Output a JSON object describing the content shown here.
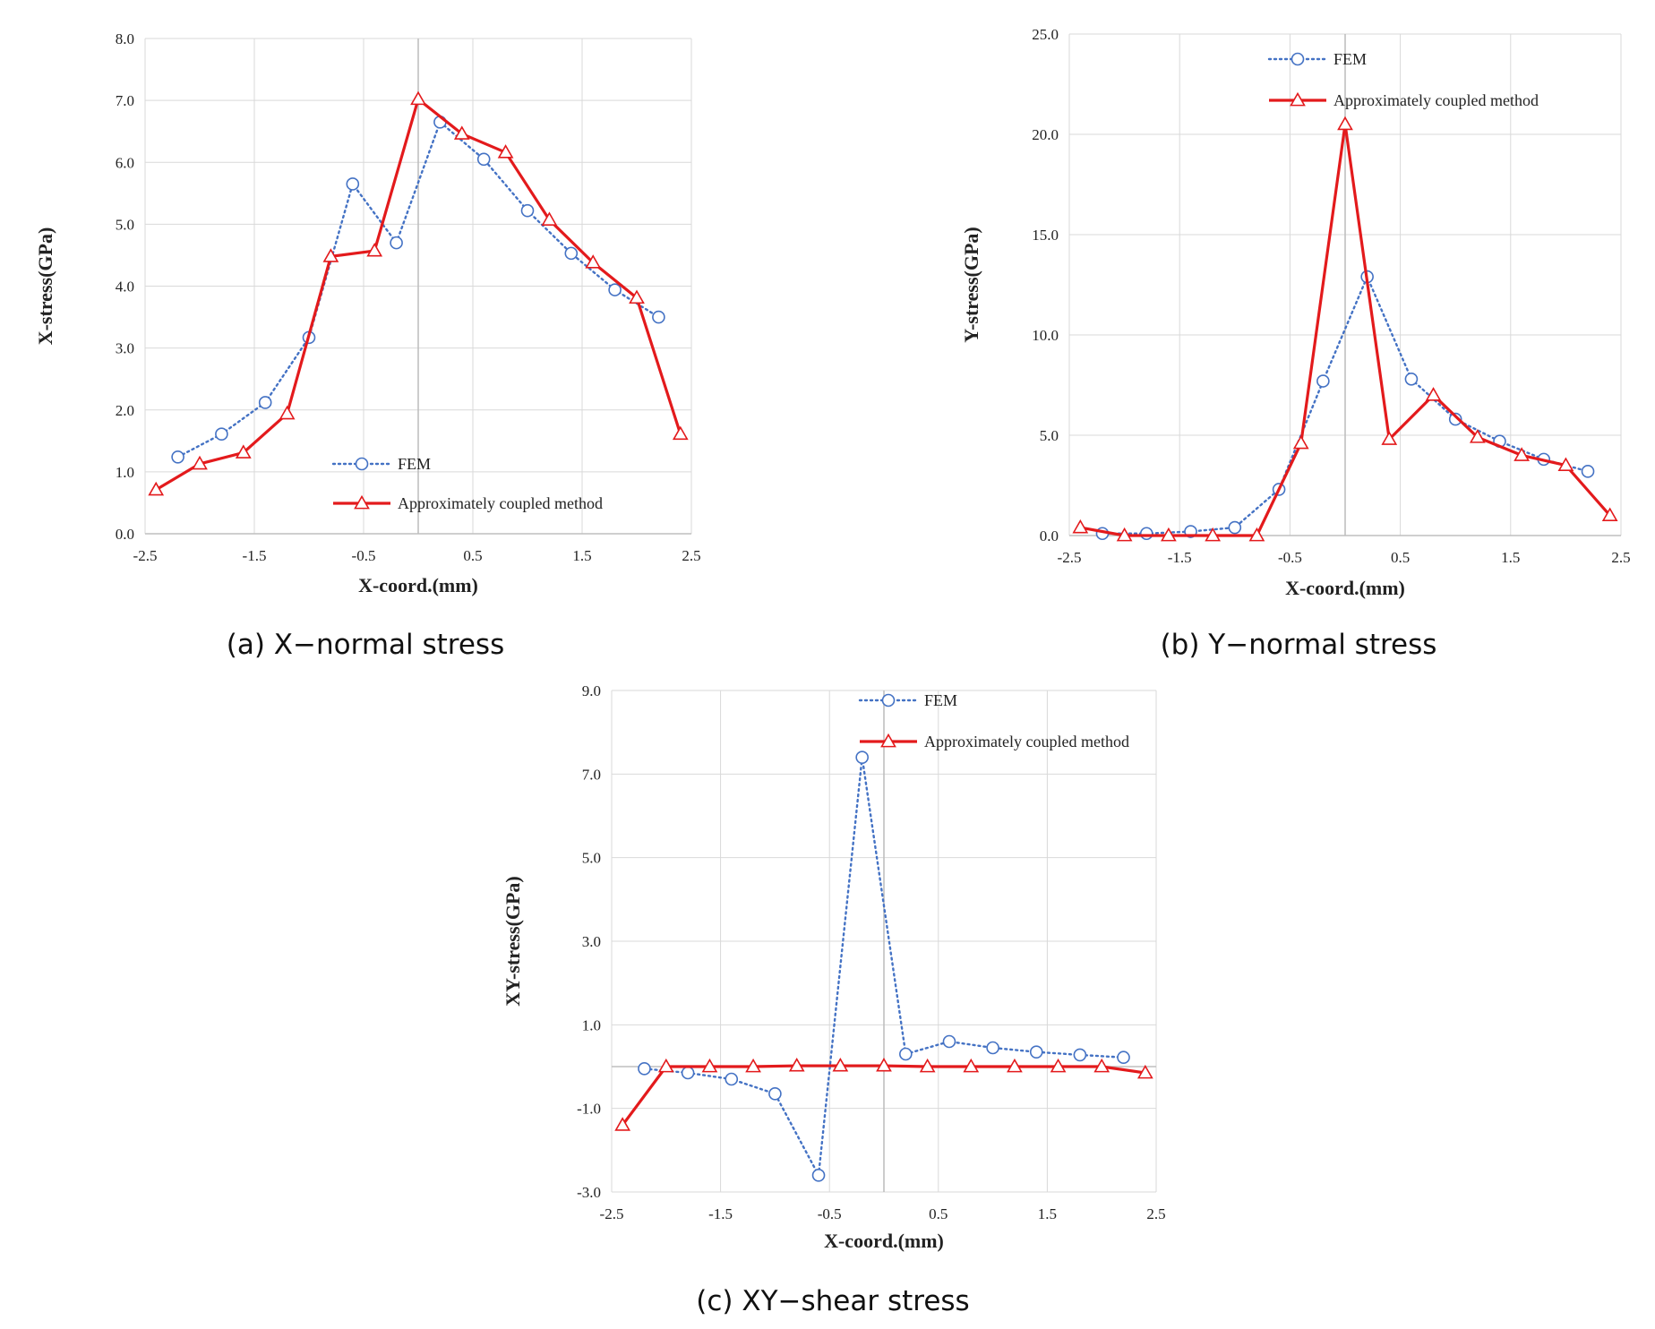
{
  "colors": {
    "fem": "#4472c4",
    "coupled": "#e31a1c",
    "grid": "#d9d9d9",
    "axis": "#bfbfbf",
    "text": "#222222"
  },
  "chart_data": [
    {
      "type": "line",
      "caption": "(a) X−normal stress",
      "title": "",
      "xlabel": "X-coord.(mm)",
      "ylabel": "X-stress(GPa)",
      "xlim": [
        -2.5,
        2.5
      ],
      "ylim": [
        0,
        8
      ],
      "xticks": [
        -2.5,
        -1.5,
        -0.5,
        0.5,
        1.5,
        2.5
      ],
      "xtick_labels": [
        "-2.5",
        "-1.5",
        "-0.5",
        "0.5",
        "1.5",
        "2.5"
      ],
      "yticks": [
        0,
        1,
        2,
        3,
        4,
        5,
        6,
        7,
        8
      ],
      "ytick_labels": [
        "0.0",
        "1.0",
        "2.0",
        "3.0",
        "4.0",
        "5.0",
        "6.0",
        "7.0",
        "8.0"
      ],
      "legend_position": "bottom-center",
      "series": [
        {
          "name": "FEM",
          "style": "dotted-circle",
          "x": [
            -2.2,
            -1.8,
            -1.4,
            -1.0,
            -0.6,
            -0.2,
            0.2,
            0.6,
            1.0,
            1.4,
            1.8,
            2.2
          ],
          "y": [
            1.24,
            1.61,
            2.12,
            3.17,
            5.65,
            4.7,
            6.65,
            6.05,
            5.22,
            4.53,
            3.94,
            3.5
          ]
        },
        {
          "name": "Approximately coupled method",
          "style": "solid-triangle",
          "x": [
            -2.4,
            -2.0,
            -1.6,
            -1.2,
            -0.8,
            -0.4,
            0.0,
            0.4,
            0.8,
            1.2,
            1.6,
            2.0,
            2.4
          ],
          "y": [
            0.71,
            1.13,
            1.31,
            1.94,
            4.48,
            4.57,
            7.02,
            6.46,
            6.16,
            5.07,
            4.38,
            3.81,
            1.61
          ]
        }
      ]
    },
    {
      "type": "line",
      "caption": "(b) Y−normal stress",
      "title": "",
      "xlabel": "X-coord.(mm)",
      "ylabel": "Y-stress(GPa)",
      "xlim": [
        -2.5,
        2.5
      ],
      "ylim": [
        0,
        25
      ],
      "xticks": [
        -2.5,
        -1.5,
        -0.5,
        0.5,
        1.5,
        2.5
      ],
      "xtick_labels": [
        "-2.5",
        "-1.5",
        "-0.5",
        "0.5",
        "1.5",
        "2.5"
      ],
      "yticks": [
        0,
        5,
        10,
        15,
        20,
        25
      ],
      "ytick_labels": [
        "0.0",
        "5.0",
        "10.0",
        "15.0",
        "20.0",
        "25.0"
      ],
      "legend_position": "top-center",
      "series": [
        {
          "name": "FEM",
          "style": "dotted-circle",
          "x": [
            -2.2,
            -1.8,
            -1.4,
            -1.0,
            -0.6,
            -0.2,
            0.2,
            0.6,
            1.0,
            1.4,
            1.8,
            2.2
          ],
          "y": [
            0.1,
            0.1,
            0.2,
            0.4,
            2.3,
            7.7,
            12.9,
            7.8,
            5.8,
            4.7,
            3.8,
            3.2
          ]
        },
        {
          "name": "Approximately coupled method",
          "style": "solid-triangle",
          "x": [
            -2.4,
            -2.0,
            -1.6,
            -1.2,
            -0.8,
            -0.4,
            0.0,
            0.4,
            0.8,
            1.2,
            1.6,
            2.0,
            2.4
          ],
          "y": [
            0.4,
            0.0,
            0.0,
            0.0,
            0.0,
            4.6,
            20.5,
            4.8,
            7.0,
            4.9,
            4.0,
            3.5,
            1.0
          ]
        }
      ]
    },
    {
      "type": "line",
      "caption": "(c) XY−shear stress",
      "title": "",
      "xlabel": "X-coord.(mm)",
      "ylabel": "XY-stress(GPa)",
      "xlim": [
        -2.5,
        2.5
      ],
      "ylim": [
        -3,
        9
      ],
      "xticks": [
        -2.5,
        -1.5,
        -0.5,
        0.5,
        1.5,
        2.5
      ],
      "xtick_labels": [
        "-2.5",
        "-1.5",
        "-0.5",
        "0.5",
        "1.5",
        "2.5"
      ],
      "yticks": [
        -3,
        -1,
        1,
        3,
        5,
        7,
        9
      ],
      "ytick_labels": [
        "-3.0",
        "-1.0",
        "1.0",
        "3.0",
        "5.0",
        "7.0",
        "9.0"
      ],
      "legend_position": "top-right",
      "series": [
        {
          "name": "FEM",
          "style": "dotted-circle",
          "x": [
            -2.2,
            -1.8,
            -1.4,
            -1.0,
            -0.6,
            -0.2,
            0.2,
            0.6,
            1.0,
            1.4,
            1.8,
            2.2
          ],
          "y": [
            -0.05,
            -0.15,
            -0.3,
            -0.65,
            -2.6,
            7.4,
            0.3,
            0.6,
            0.45,
            0.35,
            0.28,
            0.22
          ]
        },
        {
          "name": "Approximately coupled method",
          "style": "solid-triangle",
          "x": [
            -2.4,
            -2.0,
            -1.6,
            -1.2,
            -0.8,
            -0.4,
            0.0,
            0.4,
            0.8,
            1.2,
            1.6,
            2.0,
            2.4
          ],
          "y": [
            -1.4,
            0.0,
            0.0,
            0.0,
            0.02,
            0.02,
            0.02,
            0.0,
            0.0,
            0.0,
            0.0,
            0.0,
            -0.15
          ]
        }
      ]
    }
  ]
}
